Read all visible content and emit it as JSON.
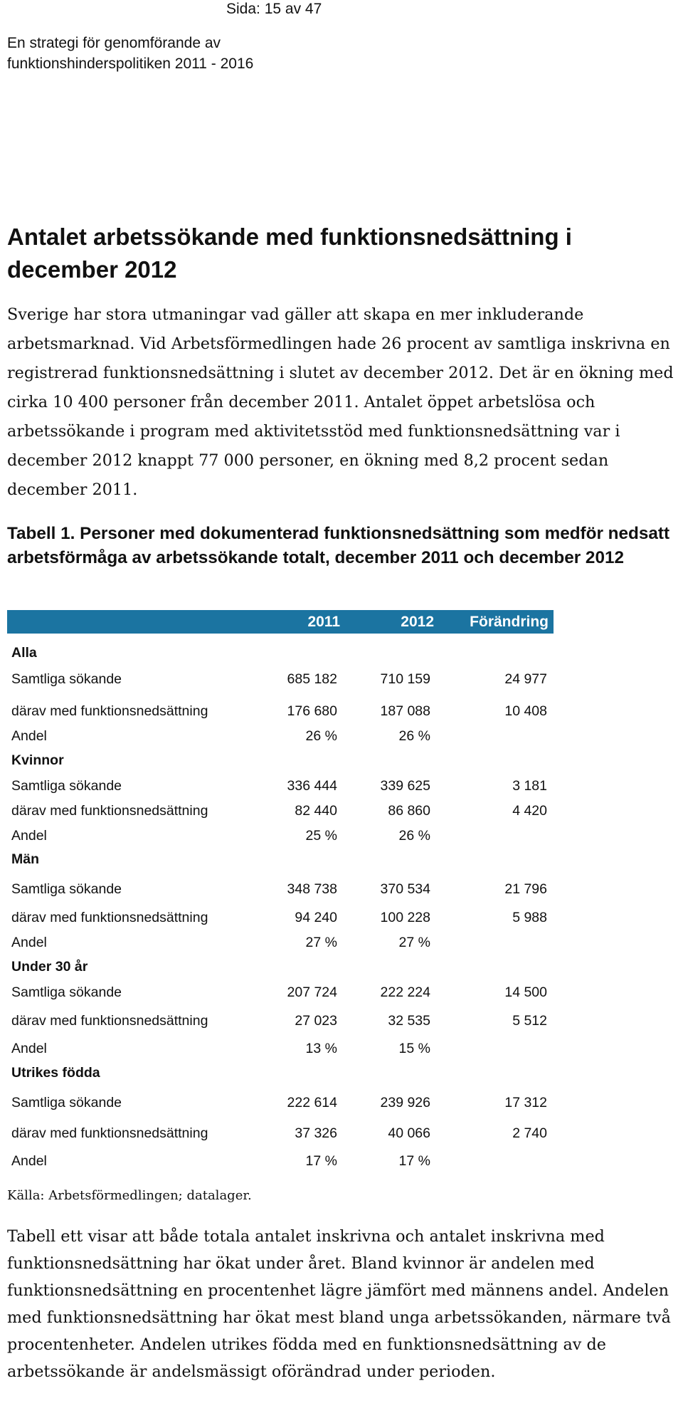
{
  "page_number": "Sida: 15 av 47",
  "doc_header": {
    "line1": "En strategi för genomförande av",
    "line2": "funktionshinderspolitiken 2011 - 2016"
  },
  "heading": "Antalet arbetssökande med funktionsnedsättning i december 2012",
  "intro_text": "Sverige har stora utmaningar vad gäller att skapa en mer inkluderande arbetsmarknad. Vid Arbetsförmedlingen hade 26 procent av samtliga inskrivna en registrerad funktionsnedsättning i slutet av december 2012. Det är en ökning med cirka 10 400 personer från december 2011. Antalet öppet arbetslösa och arbetssökande i program med aktivitetsstöd med funktionsnedsättning var i december 2012 knappt 77 000 personer, en ökning med 8,2 procent sedan december 2011.",
  "table": {
    "caption": "Tabell 1. Personer med dokumenterad funktionsnedsättning som medför nedsatt arbetsförmåga av arbetssökande totalt, december 2011 och december 2012",
    "header_color": "#1b74a1",
    "columns": [
      "2011",
      "2012",
      "Förändring"
    ],
    "groups": [
      {
        "name": "Alla",
        "rows": [
          {
            "label": "Samtliga sökande",
            "v2011": "685 182",
            "v2012": "710 159",
            "change": "24 977"
          },
          {
            "label": "därav med funktionsnedsättning",
            "v2011": "176 680",
            "v2012": "187 088",
            "change": "10 408"
          },
          {
            "label": "Andel",
            "v2011": "26 %",
            "v2012": "26 %",
            "change": ""
          }
        ]
      },
      {
        "name": "Kvinnor",
        "rows": [
          {
            "label": "Samtliga sökande",
            "v2011": "336 444",
            "v2012": "339 625",
            "change": "3 181"
          },
          {
            "label": "därav med funktionsnedsättning",
            "v2011": "82 440",
            "v2012": "86 860",
            "change": "4 420"
          },
          {
            "label": "Andel",
            "v2011": "25 %",
            "v2012": "26 %",
            "change": ""
          }
        ]
      },
      {
        "name": "Män",
        "rows": [
          {
            "label": "Samtliga sökande",
            "v2011": "348 738",
            "v2012": "370 534",
            "change": "21 796"
          },
          {
            "label": "därav med funktionsnedsättning",
            "v2011": "94 240",
            "v2012": "100 228",
            "change": "5 988"
          },
          {
            "label": "Andel",
            "v2011": "27 %",
            "v2012": "27 %",
            "change": ""
          }
        ]
      },
      {
        "name": "Under 30 år",
        "rows": [
          {
            "label": "Samtliga sökande",
            "v2011": "207 724",
            "v2012": "222 224",
            "change": "14 500"
          },
          {
            "label": "därav med funktionsnedsättning",
            "v2011": "27 023",
            "v2012": "32 535",
            "change": "5 512"
          },
          {
            "label": "Andel",
            "v2011": "13 %",
            "v2012": "15 %",
            "change": ""
          }
        ]
      },
      {
        "name": "Utrikes födda",
        "rows": [
          {
            "label": "Samtliga sökande",
            "v2011": "222 614",
            "v2012": "239 926",
            "change": "17 312"
          },
          {
            "label": "därav med funktionsnedsättning",
            "v2011": "37 326",
            "v2012": "40 066",
            "change": "2 740"
          },
          {
            "label": "Andel",
            "v2011": "17 %",
            "v2012": "17 %",
            "change": ""
          }
        ]
      }
    ],
    "source": "Källa: Arbetsförmedlingen; datalager."
  },
  "outro_text": "Tabell ett visar att både totala antalet inskrivna och antalet inskrivna med funktionsnedsättning har ökat under året. Bland kvinnor är andelen med funktionsnedsättning en procentenhet lägre jämfört med männens andel. Andelen med funktionsnedsättning har ökat mest bland unga arbetssökanden, närmare två procentenheter. Andelen utrikes födda med en funktionsnedsättning av de arbetssökande är andelsmässigt oförändrad under perioden."
}
